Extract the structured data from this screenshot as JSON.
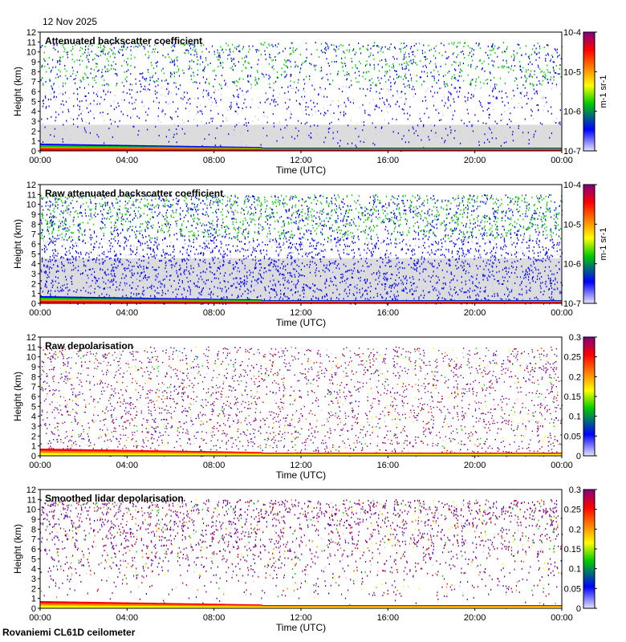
{
  "header": {
    "date": "12 Nov 2025"
  },
  "footer": {
    "instrument": "Rovaniemi CL61D ceilometer"
  },
  "colors": {
    "background_gray": "#dcdcdc",
    "colormap": [
      "#c8c8ff",
      "#0000ff",
      "#00cc00",
      "#ffff00",
      "#ff8000",
      "#ff0000",
      "#800080"
    ]
  },
  "chart_data": [
    {
      "type": "heatmap",
      "title": "Attenuated backscatter coefficient",
      "xlabel": "Time (UTC)",
      "ylabel": "Height (km)",
      "x_ticks": [
        "00:00",
        "04:00",
        "08:00",
        "12:00",
        "16:00",
        "20:00",
        "00:00"
      ],
      "y_ticks": [
        "0",
        "1",
        "2",
        "3",
        "4",
        "5",
        "6",
        "7",
        "8",
        "9",
        "10",
        "11",
        "12"
      ],
      "ylim": [
        0,
        12
      ],
      "colorbar": {
        "scale": "log",
        "range": [
          1e-07,
          0.0001
        ],
        "ticks": [
          "10-7",
          "10-6",
          "10-5",
          "10-4"
        ],
        "unit": "m-1 sr-1"
      }
    },
    {
      "type": "heatmap",
      "title": "Raw attenuated backscatter coefficient",
      "xlabel": "Time (UTC)",
      "ylabel": "Height (km)",
      "x_ticks": [
        "00:00",
        "04:00",
        "08:00",
        "12:00",
        "16:00",
        "20:00",
        "00:00"
      ],
      "y_ticks": [
        "0",
        "1",
        "2",
        "3",
        "4",
        "5",
        "6",
        "7",
        "8",
        "9",
        "10",
        "11",
        "12"
      ],
      "ylim": [
        0,
        12
      ],
      "colorbar": {
        "scale": "log",
        "range": [
          1e-07,
          0.0001
        ],
        "ticks": [
          "10-7",
          "10-6",
          "10-5",
          "10-4"
        ],
        "unit": "m-1 sr-1"
      }
    },
    {
      "type": "heatmap",
      "title": "Raw depolarisation",
      "xlabel": "Time (UTC)",
      "ylabel": "Height (km)",
      "x_ticks": [
        "00:00",
        "04:00",
        "08:00",
        "12:00",
        "16:00",
        "20:00",
        "00:00"
      ],
      "y_ticks": [
        "0",
        "1",
        "2",
        "3",
        "4",
        "5",
        "6",
        "7",
        "8",
        "9",
        "10",
        "11",
        "12"
      ],
      "ylim": [
        0,
        12
      ],
      "colorbar": {
        "scale": "linear",
        "range": [
          0,
          0.3
        ],
        "ticks": [
          "0",
          "0.05",
          "0.1",
          "0.15",
          "0.2",
          "0.25",
          "0.3"
        ],
        "unit": ""
      }
    },
    {
      "type": "heatmap",
      "title": "Smoothed lidar depolarisation",
      "xlabel": "Time (UTC)",
      "ylabel": "Height (km)",
      "x_ticks": [
        "00:00",
        "04:00",
        "08:00",
        "12:00",
        "16:00",
        "20:00",
        "00:00"
      ],
      "y_ticks": [
        "0",
        "1",
        "2",
        "3",
        "4",
        "5",
        "6",
        "7",
        "8",
        "9",
        "10",
        "11",
        "12"
      ],
      "ylim": [
        0,
        12
      ],
      "colorbar": {
        "scale": "linear",
        "range": [
          0,
          0.3
        ],
        "ticks": [
          "0",
          "0.05",
          "0.1",
          "0.15",
          "0.2",
          "0.25",
          "0.3"
        ],
        "unit": ""
      }
    }
  ]
}
